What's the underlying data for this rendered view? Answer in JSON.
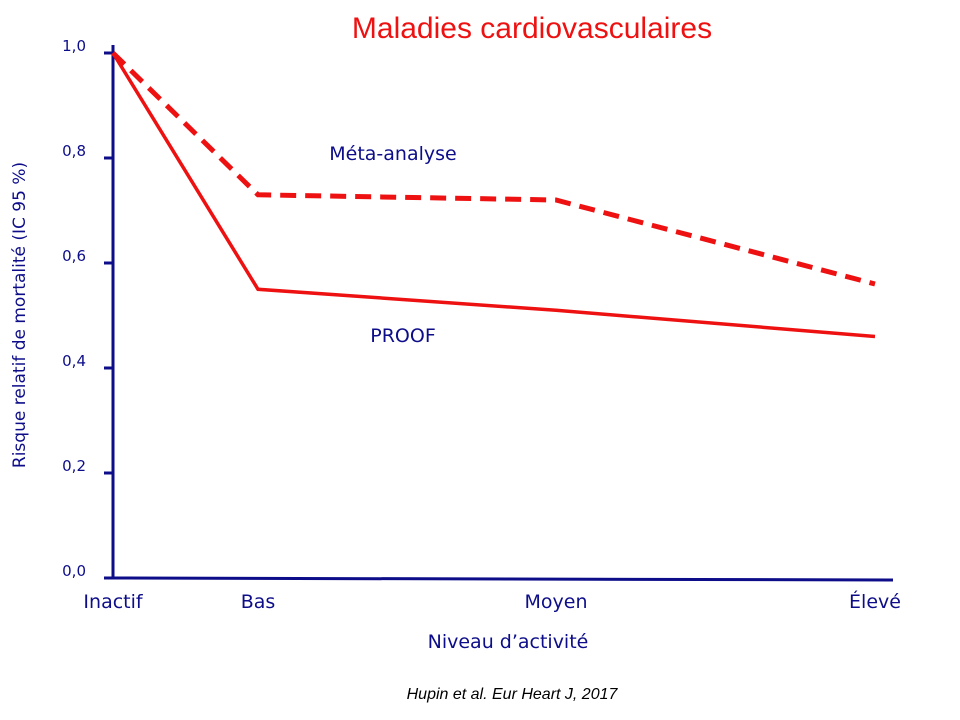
{
  "chart_data": {
    "type": "line",
    "title": "Maladies cardiovasculaires",
    "xlabel": "Niveau d’activité",
    "ylabel": "Risque relatif de mortalité (IC 95 %)",
    "categories": [
      "Inactif",
      "Bas",
      "Moyen",
      "Élevé"
    ],
    "yticks": [
      "0,0",
      "0,2",
      "0,4",
      "0,6",
      "0,8",
      "1,0"
    ],
    "ylim": [
      0,
      1.0
    ],
    "grid": false,
    "series": [
      {
        "name": "Méta-analyse",
        "style": "dashed",
        "color": "#ee1111",
        "points": [
          {
            "x": "Inactif",
            "y": 1.0
          },
          {
            "x": "Bas",
            "y": 0.73
          },
          {
            "x": "Moyen",
            "y": 0.72
          },
          {
            "x": "Élevé",
            "y": 0.56
          }
        ]
      },
      {
        "name": "PROOF",
        "style": "solid",
        "color": "#ee1111",
        "points": [
          {
            "x": "Inactif",
            "y": 1.0
          },
          {
            "x": "Bas",
            "y": 0.55
          },
          {
            "x": "Moyen",
            "y": 0.51
          },
          {
            "x": "Élevé",
            "y": 0.46
          }
        ]
      }
    ],
    "source": "Hupin et al. Eur Heart J, 2017"
  },
  "colors": {
    "title": "#ee1111",
    "axis": "#0d0d8a",
    "labels": "#0d0d8a",
    "line": "#ee1111",
    "source": "#000000"
  }
}
